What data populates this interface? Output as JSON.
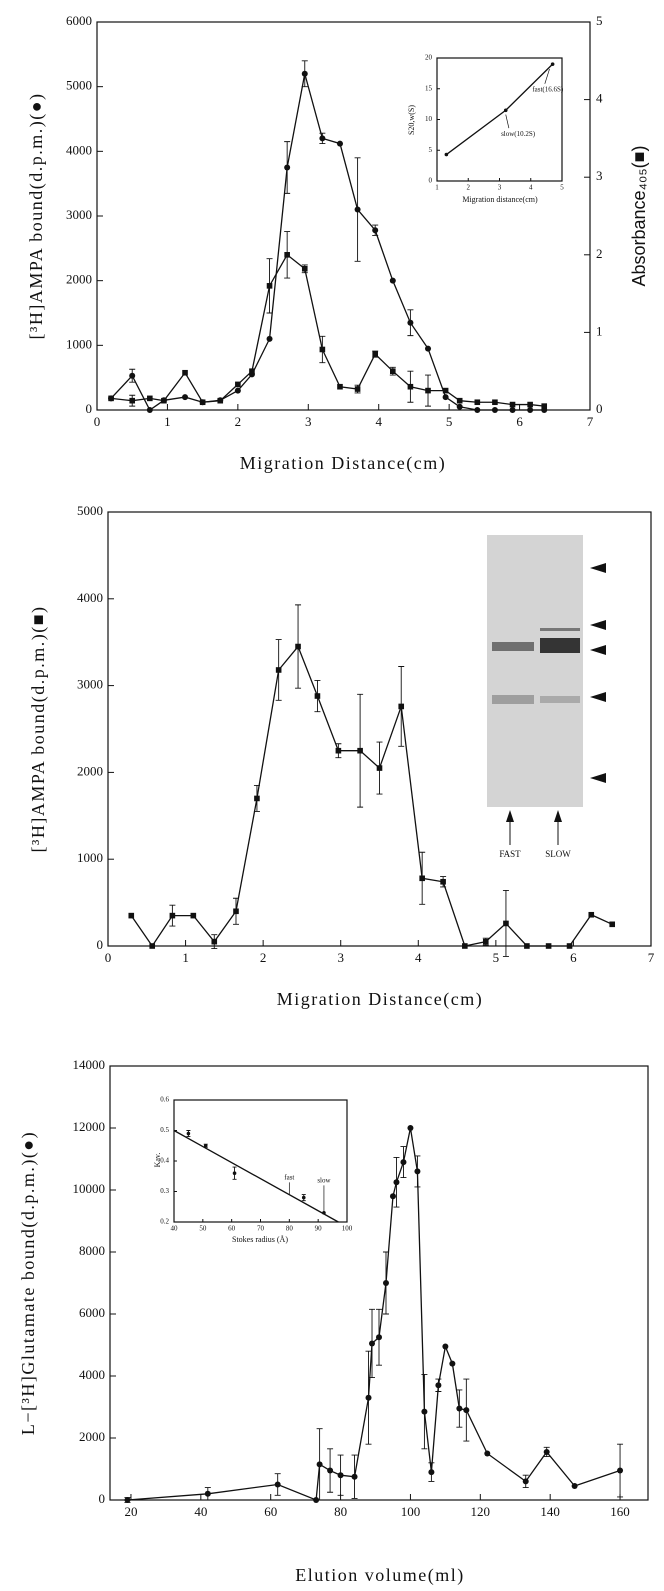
{
  "chart_data": [
    {
      "type": "line",
      "xlim": [
        0,
        7
      ],
      "xticks": [
        0,
        1,
        2,
        3,
        4,
        5,
        6,
        7
      ],
      "ylim": [
        0,
        6000
      ],
      "yticks": [
        0,
        1000,
        2000,
        3000,
        4000,
        5000,
        6000
      ],
      "y2lim": [
        0,
        5
      ],
      "y2ticks": [
        0,
        1,
        2,
        3,
        4,
        5
      ],
      "x_label": "Migration Distance(cm)",
      "y_label": "[³H]AMPA bound(d.p.m.)(●)",
      "y2_label": "Absorbance₄₀₅(■)",
      "series": [
        {
          "marker": "circle",
          "color": "#111",
          "x": [
            0.2,
            0.5,
            0.75,
            0.95,
            1.25,
            1.5,
            1.75,
            2.0,
            2.2,
            2.45,
            2.7,
            2.95,
            3.2,
            3.45,
            3.7,
            3.95,
            4.2,
            4.45,
            4.7,
            4.95,
            5.15,
            5.4,
            5.65,
            5.9,
            6.15,
            6.35
          ],
          "values": [
            180,
            530,
            0,
            150,
            200,
            120,
            150,
            300,
            550,
            1100,
            3750,
            5200,
            4200,
            4120,
            3100,
            2780,
            2000,
            1350,
            950,
            200,
            50,
            0,
            0,
            0,
            0,
            0
          ],
          "errors": [
            null,
            100,
            null,
            null,
            null,
            null,
            null,
            null,
            null,
            null,
            400,
            200,
            80,
            null,
            800,
            80,
            null,
            200,
            null,
            null,
            null,
            null,
            null,
            null,
            null,
            null
          ]
        },
        {
          "marker": "square",
          "color": "#111",
          "axis": "y2",
          "x": [
            0.2,
            0.5,
            0.75,
            0.95,
            1.25,
            1.5,
            1.75,
            2.0,
            2.2,
            2.45,
            2.7,
            2.95,
            3.2,
            3.45,
            3.7,
            3.95,
            4.2,
            4.45,
            4.7,
            4.95,
            5.15,
            5.4,
            5.65,
            5.9,
            6.15,
            6.35
          ],
          "values": [
            0.15,
            0.12,
            0.15,
            0.12,
            0.48,
            0.1,
            0.12,
            0.33,
            0.5,
            1.6,
            2.0,
            1.82,
            0.78,
            0.3,
            0.27,
            0.72,
            0.5,
            0.3,
            0.25,
            0.25,
            0.12,
            0.1,
            0.1,
            0.07,
            0.07,
            0.05
          ],
          "errors": [
            null,
            0.07,
            null,
            null,
            null,
            null,
            null,
            null,
            null,
            0.35,
            0.3,
            0.05,
            0.17,
            null,
            0.05,
            0.04,
            0.05,
            0.2,
            0.2,
            null,
            null,
            null,
            null,
            null,
            null,
            null
          ]
        }
      ],
      "inset": {
        "type": "line",
        "xlim": [
          1,
          5
        ],
        "xticks": [
          1,
          2,
          3,
          4,
          5
        ],
        "ylim": [
          0,
          20
        ],
        "yticks": [
          0,
          5,
          10,
          15,
          20
        ],
        "x_label": "Migration distance(cm)",
        "y_label": "S20,w(S)",
        "annotations": [
          "fast(16.6S)",
          "slow(10.2S)"
        ],
        "series": [
          {
            "marker": "dot",
            "color": "#111",
            "x": [
              1.3,
              3.2,
              4.7
            ],
            "values": [
              4.3,
              11.5,
              19
            ]
          }
        ]
      }
    },
    {
      "type": "line",
      "xlim": [
        0,
        7
      ],
      "xticks": [
        0,
        1,
        2,
        3,
        4,
        5,
        6,
        7
      ],
      "ylim": [
        0,
        5000
      ],
      "yticks": [
        0,
        1000,
        2000,
        3000,
        4000,
        5000
      ],
      "x_label": "Migration Distance(cm)",
      "y_label": "[³H]AMPA bound(d.p.m.)(■)",
      "gel_labels": [
        "FAST",
        "SLOW"
      ],
      "series": [
        {
          "marker": "square",
          "color": "#111",
          "x": [
            0.3,
            0.57,
            0.83,
            1.1,
            1.37,
            1.65,
            1.92,
            2.2,
            2.45,
            2.7,
            2.97,
            3.25,
            3.5,
            3.78,
            4.05,
            4.32,
            4.6,
            4.87,
            5.13,
            5.4,
            5.68,
            5.95,
            6.23,
            6.5
          ],
          "values": [
            350,
            0,
            350,
            350,
            50,
            400,
            1700,
            3180,
            3450,
            2880,
            2250,
            2250,
            2050,
            2760,
            780,
            740,
            0,
            50,
            260,
            0,
            0,
            0,
            360,
            250
          ],
          "errors": [
            null,
            null,
            120,
            null,
            80,
            150,
            150,
            350,
            480,
            180,
            80,
            650,
            300,
            460,
            300,
            60,
            null,
            40,
            380,
            null,
            null,
            null,
            null,
            null
          ]
        }
      ]
    },
    {
      "type": "line",
      "xlim": [
        14,
        168
      ],
      "xticks": [
        20,
        40,
        60,
        80,
        100,
        120,
        140,
        160
      ],
      "ylim": [
        0,
        14000
      ],
      "yticks": [
        0,
        2000,
        4000,
        6000,
        8000,
        10000,
        12000,
        14000
      ],
      "x_label": "Elution volume(ml)",
      "y_label": "L−[³H]Glutamate bound(d.p.m.)(●)",
      "series": [
        {
          "marker": "circle",
          "color": "#111",
          "x": [
            19,
            42,
            62,
            73,
            74,
            77,
            80,
            84,
            88,
            89,
            91,
            93,
            95,
            96,
            98,
            100,
            102,
            104,
            106,
            108,
            110,
            112,
            114,
            116,
            122,
            133,
            139,
            147,
            160
          ],
          "values": [
            0,
            200,
            500,
            0,
            1150,
            950,
            800,
            750,
            3300,
            5050,
            5250,
            7000,
            9800,
            10250,
            10900,
            12000,
            10600,
            2850,
            900,
            3700,
            4950,
            4400,
            2950,
            2900,
            1500,
            600,
            1550,
            450,
            950
          ],
          "errors": [
            80,
            200,
            350,
            null,
            1150,
            700,
            650,
            700,
            1500,
            1100,
            900,
            1000,
            null,
            800,
            500,
            null,
            500,
            1200,
            300,
            200,
            null,
            null,
            600,
            1000,
            null,
            200,
            150,
            null,
            850
          ]
        }
      ],
      "inset": {
        "type": "line",
        "xlim": [
          40,
          100
        ],
        "xticks": [
          40,
          50,
          60,
          70,
          80,
          90,
          100
        ],
        "ylim": [
          0.2,
          0.6
        ],
        "yticks": [
          0.2,
          0.3,
          0.4,
          0.5,
          0.6
        ],
        "x_label": "Stokes radius (Å)",
        "y_label": "Kav.",
        "annotations": [
          "fast",
          "slow"
        ],
        "series": [
          {
            "marker": "dot",
            "color": "#111",
            "line": false,
            "x": [
              45,
              51,
              61,
              85,
              92
            ],
            "values": [
              0.49,
              0.45,
              0.36,
              0.28,
              0.23
            ],
            "errors": [
              0.01,
              0.005,
              0.02,
              0.01,
              null
            ]
          },
          {
            "marker": "none",
            "color": "#111",
            "x": [
              40,
              97
            ],
            "values": [
              0.5,
              0.2
            ]
          }
        ]
      }
    }
  ]
}
